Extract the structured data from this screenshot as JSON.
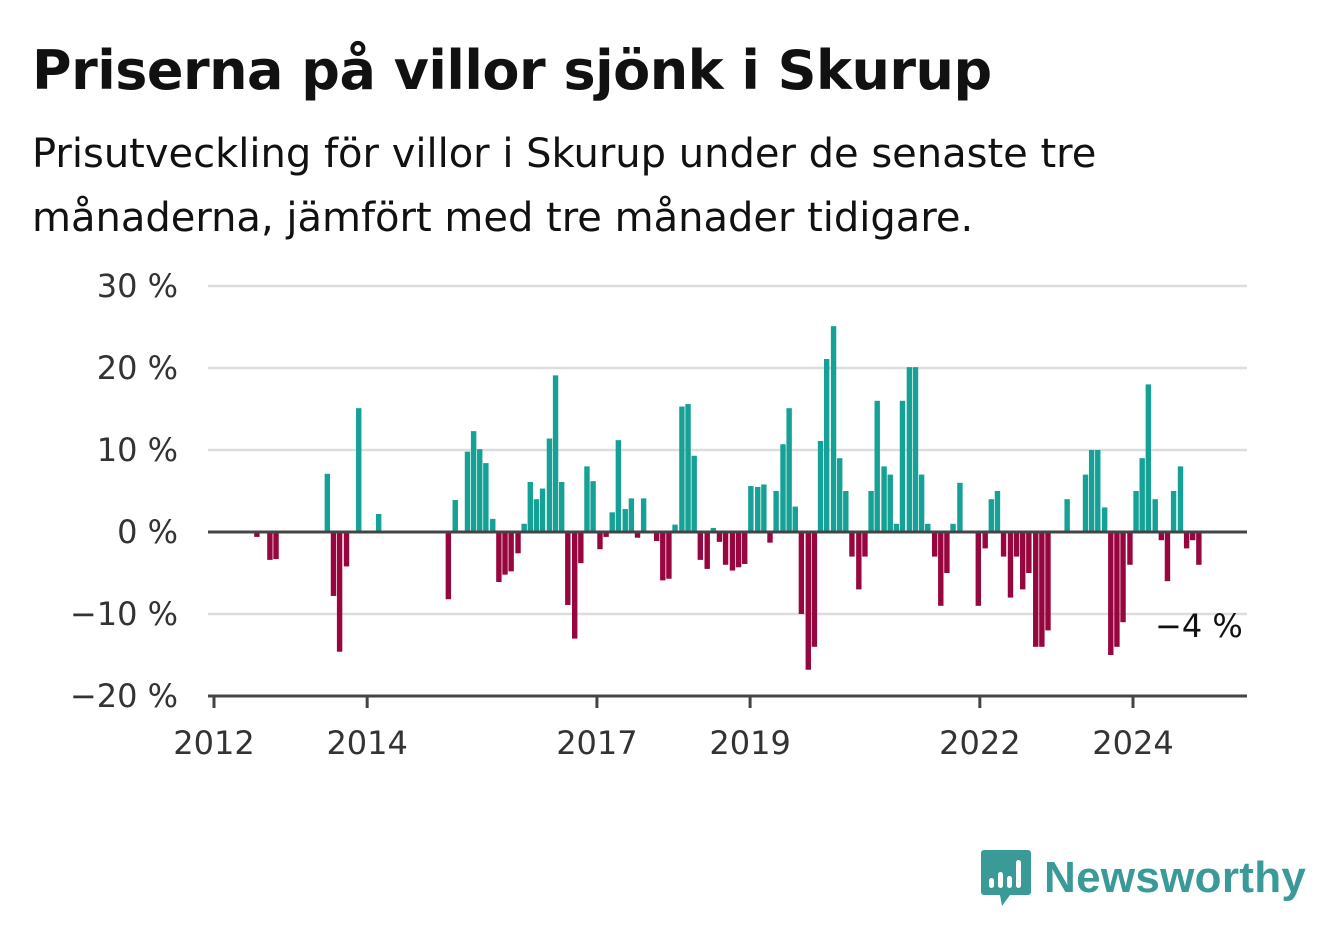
{
  "title": "Priserna på villor sjönk i Skurup",
  "subtitle": "Prisutveckling för villor i Skurup under de senaste tre månaderna, jämfört med tre månader tidigare.",
  "brand": {
    "name": "Newsworthy",
    "color": "#3a9a97"
  },
  "colors": {
    "positive": "#15a196",
    "negative": "#98063f",
    "grid": "#dddddd",
    "axis": "#444444"
  },
  "chart_data": {
    "type": "bar",
    "title": "Priserna på villor sjönk i Skurup",
    "subtitle": "Prisutveckling för villor i Skurup under de senaste tre månaderna, jämfört med tre månader tidigare.",
    "xlabel": "",
    "ylabel": "",
    "ylim": [
      -20,
      30
    ],
    "y_ticks": [
      30,
      20,
      10,
      0,
      -10,
      -20
    ],
    "y_tick_labels": [
      "30 %",
      "20 %",
      "10 %",
      "0 %",
      "−10 %",
      "−20 %"
    ],
    "x_ticks": [
      2012,
      2014,
      2017,
      2019,
      2022,
      2024
    ],
    "x_tick_labels": [
      "2012",
      "2014",
      "2017",
      "2019",
      "2022",
      "2024"
    ],
    "grid": true,
    "end_label": "−4 %",
    "series": [
      {
        "values": [
          {
            "x": 2012.56,
            "y": -0.6
          },
          {
            "x": 2012.73,
            "y": -3.4
          },
          {
            "x": 2012.81,
            "y": -3.3
          },
          {
            "x": 2013.48,
            "y": 7.1
          },
          {
            "x": 2013.56,
            "y": -7.8
          },
          {
            "x": 2013.64,
            "y": -14.6
          },
          {
            "x": 2013.73,
            "y": -4.2
          },
          {
            "x": 2013.89,
            "y": 15.1
          },
          {
            "x": 2014.15,
            "y": 2.2
          },
          {
            "x": 2015.06,
            "y": -8.2
          },
          {
            "x": 2015.15,
            "y": 3.9
          },
          {
            "x": 2015.31,
            "y": 9.8
          },
          {
            "x": 2015.39,
            "y": 12.3
          },
          {
            "x": 2015.47,
            "y": 10.1
          },
          {
            "x": 2015.55,
            "y": 8.4
          },
          {
            "x": 2015.64,
            "y": 1.6
          },
          {
            "x": 2015.72,
            "y": -6.1
          },
          {
            "x": 2015.8,
            "y": -5.2
          },
          {
            "x": 2015.88,
            "y": -4.8
          },
          {
            "x": 2015.97,
            "y": -2.6
          },
          {
            "x": 2016.05,
            "y": 1.0
          },
          {
            "x": 2016.13,
            "y": 6.1
          },
          {
            "x": 2016.21,
            "y": 4.0
          },
          {
            "x": 2016.29,
            "y": 5.3
          },
          {
            "x": 2016.38,
            "y": 11.4
          },
          {
            "x": 2016.46,
            "y": 19.1
          },
          {
            "x": 2016.54,
            "y": 6.1
          },
          {
            "x": 2016.62,
            "y": -8.9
          },
          {
            "x": 2016.71,
            "y": -13.0
          },
          {
            "x": 2016.79,
            "y": -3.8
          },
          {
            "x": 2016.87,
            "y": 8.0
          },
          {
            "x": 2016.95,
            "y": 6.2
          },
          {
            "x": 2017.04,
            "y": -2.1
          },
          {
            "x": 2017.12,
            "y": -0.6
          },
          {
            "x": 2017.2,
            "y": 2.4
          },
          {
            "x": 2017.28,
            "y": 11.2
          },
          {
            "x": 2017.37,
            "y": 2.8
          },
          {
            "x": 2017.45,
            "y": 4.1
          },
          {
            "x": 2017.53,
            "y": -0.7
          },
          {
            "x": 2017.61,
            "y": 4.1
          },
          {
            "x": 2017.78,
            "y": -1.1
          },
          {
            "x": 2017.86,
            "y": -5.9
          },
          {
            "x": 2017.94,
            "y": -5.7
          },
          {
            "x": 2018.02,
            "y": 0.9
          },
          {
            "x": 2018.11,
            "y": 15.3
          },
          {
            "x": 2018.19,
            "y": 15.6
          },
          {
            "x": 2018.27,
            "y": 9.3
          },
          {
            "x": 2018.35,
            "y": -3.4
          },
          {
            "x": 2018.44,
            "y": -4.5
          },
          {
            "x": 2018.52,
            "y": 0.5
          },
          {
            "x": 2018.6,
            "y": -1.2
          },
          {
            "x": 2018.68,
            "y": -4.0
          },
          {
            "x": 2018.77,
            "y": -4.7
          },
          {
            "x": 2018.85,
            "y": -4.3
          },
          {
            "x": 2018.93,
            "y": -3.9
          },
          {
            "x": 2019.01,
            "y": 5.6
          },
          {
            "x": 2019.1,
            "y": 5.5
          },
          {
            "x": 2019.18,
            "y": 5.8
          },
          {
            "x": 2019.26,
            "y": -1.3
          },
          {
            "x": 2019.34,
            "y": 5.0
          },
          {
            "x": 2019.43,
            "y": 10.7
          },
          {
            "x": 2019.51,
            "y": 15.1
          },
          {
            "x": 2019.59,
            "y": 3.1
          },
          {
            "x": 2019.67,
            "y": -10.0
          },
          {
            "x": 2019.76,
            "y": -16.8
          },
          {
            "x": 2019.84,
            "y": -14.0
          },
          {
            "x": 2019.92,
            "y": 11.1
          },
          {
            "x": 2020.0,
            "y": 21.1
          },
          {
            "x": 2020.09,
            "y": 25.1
          },
          {
            "x": 2020.17,
            "y": 9.0
          },
          {
            "x": 2020.25,
            "y": 5.0
          },
          {
            "x": 2020.33,
            "y": -3.0
          },
          {
            "x": 2020.42,
            "y": -7.0
          },
          {
            "x": 2020.5,
            "y": -3.0
          },
          {
            "x": 2020.58,
            "y": 5.0
          },
          {
            "x": 2020.66,
            "y": 16.0
          },
          {
            "x": 2020.75,
            "y": 8.0
          },
          {
            "x": 2020.83,
            "y": 7.0
          },
          {
            "x": 2020.91,
            "y": 1.0
          },
          {
            "x": 2020.99,
            "y": 16.0
          },
          {
            "x": 2021.08,
            "y": 20.1
          },
          {
            "x": 2021.16,
            "y": 20.1
          },
          {
            "x": 2021.24,
            "y": 7.0
          },
          {
            "x": 2021.32,
            "y": 1.0
          },
          {
            "x": 2021.41,
            "y": -3.0
          },
          {
            "x": 2021.49,
            "y": -9.0
          },
          {
            "x": 2021.57,
            "y": -5.0
          },
          {
            "x": 2021.65,
            "y": 1.0
          },
          {
            "x": 2021.74,
            "y": 6.0
          },
          {
            "x": 2021.98,
            "y": -9.0
          },
          {
            "x": 2022.07,
            "y": -2.0
          },
          {
            "x": 2022.15,
            "y": 4.0
          },
          {
            "x": 2022.23,
            "y": 5.0
          },
          {
            "x": 2022.31,
            "y": -3.0
          },
          {
            "x": 2022.4,
            "y": -8.0
          },
          {
            "x": 2022.48,
            "y": -3.0
          },
          {
            "x": 2022.56,
            "y": -7.0
          },
          {
            "x": 2022.64,
            "y": -5.0
          },
          {
            "x": 2022.73,
            "y": -14.0
          },
          {
            "x": 2022.81,
            "y": -14.0
          },
          {
            "x": 2022.89,
            "y": -12.0
          },
          {
            "x": 2023.14,
            "y": 4.0
          },
          {
            "x": 2023.38,
            "y": 7.0
          },
          {
            "x": 2023.46,
            "y": 10.0
          },
          {
            "x": 2023.54,
            "y": 10.0
          },
          {
            "x": 2023.63,
            "y": 3.0
          },
          {
            "x": 2023.71,
            "y": -15.0
          },
          {
            "x": 2023.79,
            "y": -14.0
          },
          {
            "x": 2023.87,
            "y": -11.0
          },
          {
            "x": 2023.96,
            "y": -4.0
          },
          {
            "x": 2024.04,
            "y": 5.0
          },
          {
            "x": 2024.12,
            "y": 9.0
          },
          {
            "x": 2024.2,
            "y": 18.0
          },
          {
            "x": 2024.29,
            "y": 4.0
          },
          {
            "x": 2024.37,
            "y": -1.0
          },
          {
            "x": 2024.45,
            "y": -6.0
          },
          {
            "x": 2024.53,
            "y": 5.0
          },
          {
            "x": 2024.62,
            "y": 8.0
          },
          {
            "x": 2024.7,
            "y": -2.0
          },
          {
            "x": 2024.78,
            "y": -1.0
          },
          {
            "x": 2024.86,
            "y": -4.0
          }
        ]
      }
    ]
  }
}
